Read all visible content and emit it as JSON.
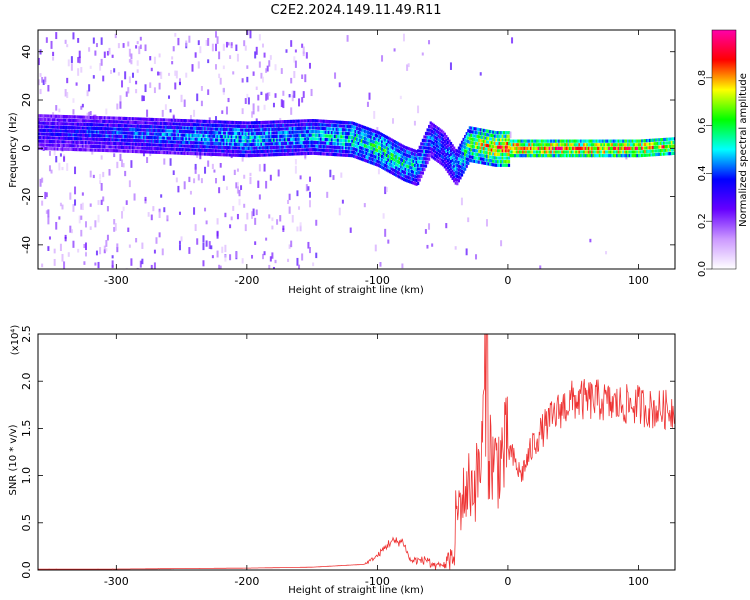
{
  "title": "C2E2.2024.149.11.49.R11",
  "chart_data": [
    {
      "type": "heatmap",
      "title": "C2E2.2024.149.11.49.R11",
      "xlabel": "Height of straight line (km)",
      "ylabel": "Frequency (Hz)",
      "xlim": [
        -360,
        128
      ],
      "ylim": [
        -50,
        49
      ],
      "xticks": [
        -300,
        -200,
        -100,
        0,
        100
      ],
      "yticks": [
        -40,
        -20,
        0,
        20,
        40
      ],
      "colorbar": {
        "label": "Normalized spectral amplitude",
        "range": [
          0,
          1
        ],
        "ticks": [
          "0.0",
          "0.2",
          "0.4",
          "0.6",
          "0.8"
        ],
        "colors": [
          "#ffffff",
          "#cc99ff",
          "#6600ff",
          "#0000ff",
          "#00ffff",
          "#00ff00",
          "#ffff00",
          "#ff0000",
          "#ff00aa"
        ]
      },
      "ridge": {
        "x": [
          -360,
          -300,
          -250,
          -200,
          -150,
          -120,
          -100,
          -80,
          -70,
          -60,
          -50,
          -40,
          -30,
          -20,
          -10,
          0,
          50,
          100,
          128
        ],
        "y": [
          7,
          6,
          5,
          4,
          5,
          4,
          0,
          -6,
          -8,
          4,
          0,
          -8,
          2,
          1,
          0,
          0,
          0,
          0,
          1
        ],
        "amplitude": [
          0.35,
          0.4,
          0.45,
          0.5,
          0.5,
          0.55,
          0.6,
          0.55,
          0.5,
          0.45,
          0.45,
          0.45,
          0.65,
          0.75,
          0.8,
          0.85,
          0.85,
          0.85,
          0.8
        ]
      }
    },
    {
      "type": "line",
      "xlabel": "Height of straight line (km)",
      "ylabel": "SNR (10 * v/v)",
      "yscale_label": "(x10⁴)",
      "xlim": [
        -360,
        128
      ],
      "ylim": [
        0,
        2.5
      ],
      "xticks": [
        -300,
        -200,
        -100,
        0,
        100
      ],
      "yticks": [
        "0.0",
        "0.5",
        "1.0",
        "1.5",
        "2.0",
        "2.5"
      ],
      "series": [
        {
          "color": "#ee3333",
          "x": [
            -360,
            -300,
            -200,
            -150,
            -110,
            -100,
            -90,
            -80,
            -75,
            -65,
            -50,
            -40,
            -30,
            -25,
            -20,
            -16,
            -15,
            -10,
            0,
            10,
            20,
            30,
            40,
            50,
            60,
            70,
            80,
            90,
            100,
            110,
            120,
            128
          ],
          "y": [
            0.01,
            0.01,
            0.02,
            0.03,
            0.06,
            0.15,
            0.3,
            0.3,
            0.1,
            0.1,
            0.15,
            0.6,
            0.9,
            0.9,
            1.2,
            2.5,
            1.3,
            1.1,
            1.3,
            1.0,
            1.35,
            1.55,
            1.7,
            1.8,
            1.8,
            1.8,
            1.75,
            1.75,
            1.75,
            1.7,
            1.7,
            1.7
          ]
        }
      ]
    }
  ]
}
